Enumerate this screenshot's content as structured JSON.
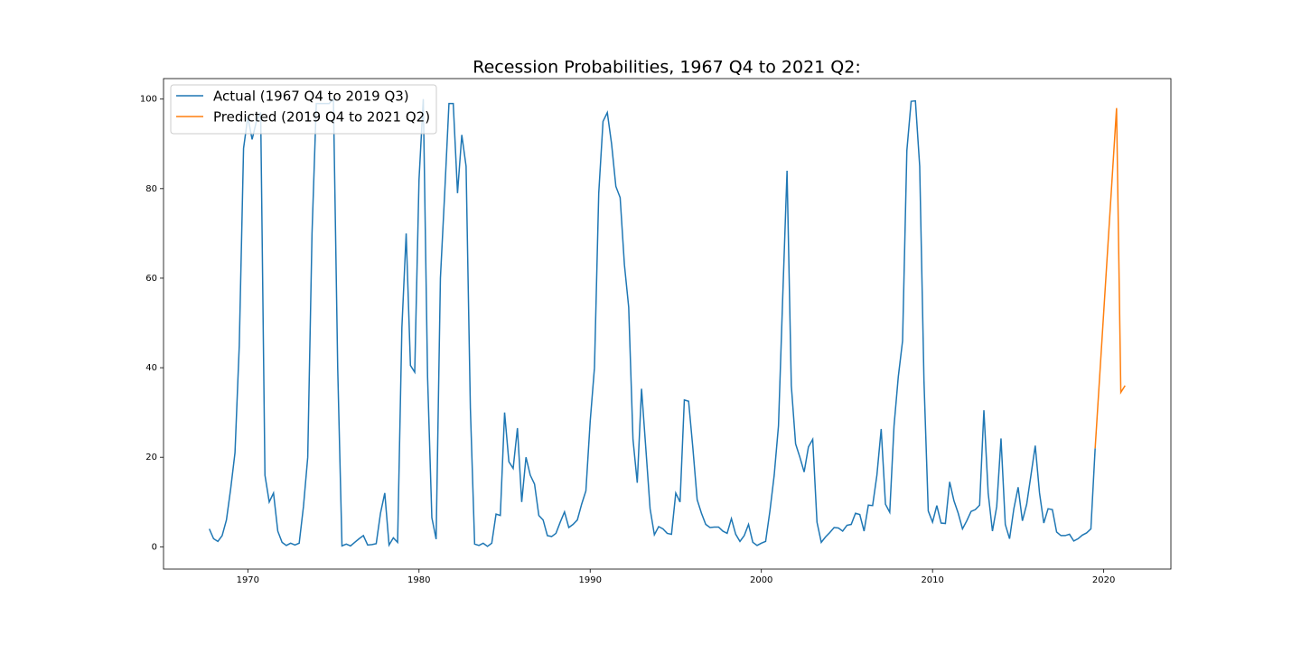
{
  "chart_data": {
    "type": "line",
    "title": "Recession Probabilities, 1967 Q4 to 2021 Q2:",
    "xlim": [
      1965.075,
      2023.925
    ],
    "ylim": [
      -4.98,
      104.58
    ],
    "xticks": [
      1970,
      1980,
      1990,
      2000,
      2010,
      2020
    ],
    "yticks": [
      0,
      20,
      40,
      60,
      80,
      100
    ],
    "grid": false,
    "legend": "upper left",
    "series": [
      {
        "name": "Actual (1967 Q4 to 2019 Q3)",
        "color": "#1f77b4",
        "x": [
          1967.75,
          1968,
          1968.25,
          1968.5,
          1968.75,
          1969,
          1969.25,
          1969.5,
          1969.75,
          1970,
          1970.25,
          1970.5,
          1970.75,
          1971,
          1971.25,
          1971.5,
          1971.75,
          1972,
          1972.25,
          1972.5,
          1972.75,
          1973,
          1973.25,
          1973.5,
          1973.75,
          1974,
          1974.25,
          1974.5,
          1974.75,
          1975,
          1975.25,
          1975.5,
          1975.75,
          1976,
          1976.25,
          1976.5,
          1976.75,
          1977,
          1977.25,
          1977.5,
          1977.75,
          1978,
          1978.25,
          1978.5,
          1978.75,
          1979,
          1979.25,
          1979.5,
          1979.75,
          1980,
          1980.25,
          1980.5,
          1980.75,
          1981,
          1981.25,
          1981.5,
          1981.75,
          1982,
          1982.25,
          1982.5,
          1982.75,
          1983,
          1983.25,
          1983.5,
          1983.75,
          1984,
          1984.25,
          1984.5,
          1984.75,
          1985,
          1985.25,
          1985.5,
          1985.75,
          1986,
          1986.25,
          1986.5,
          1986.75,
          1987,
          1987.25,
          1987.5,
          1987.75,
          1988,
          1988.25,
          1988.5,
          1988.75,
          1989,
          1989.25,
          1989.5,
          1989.75,
          1990,
          1990.25,
          1990.5,
          1990.75,
          1991,
          1991.25,
          1991.5,
          1991.75,
          1992,
          1992.25,
          1992.5,
          1992.75,
          1993,
          1993.25,
          1993.5,
          1993.75,
          1994,
          1994.25,
          1994.5,
          1994.75,
          1995,
          1995.25,
          1995.5,
          1995.75,
          1996,
          1996.25,
          1996.5,
          1996.75,
          1997,
          1997.25,
          1997.5,
          1997.75,
          1998,
          1998.25,
          1998.5,
          1998.75,
          1999,
          1999.25,
          1999.5,
          1999.75,
          2000,
          2000.25,
          2000.5,
          2000.75,
          2001,
          2001.25,
          2001.5,
          2001.75,
          2002,
          2002.25,
          2002.5,
          2002.75,
          2003,
          2003.25,
          2003.5,
          2003.75,
          2004,
          2004.25,
          2004.5,
          2004.75,
          2005,
          2005.25,
          2005.5,
          2005.75,
          2006,
          2006.25,
          2006.5,
          2006.75,
          2007,
          2007.25,
          2007.5,
          2007.75,
          2008,
          2008.25,
          2008.5,
          2008.75,
          2009,
          2009.25,
          2009.5,
          2009.75,
          2010,
          2010.25,
          2010.5,
          2010.75,
          2011,
          2011.25,
          2011.5,
          2011.75,
          2012,
          2012.25,
          2012.5,
          2012.75,
          2013,
          2013.25,
          2013.5,
          2013.75,
          2014,
          2014.25,
          2014.5,
          2014.75,
          2015,
          2015.25,
          2015.5,
          2015.75,
          2016,
          2016.25,
          2016.5,
          2016.75,
          2017,
          2017.25,
          2017.5,
          2017.75,
          2018,
          2018.25,
          2018.5,
          2018.75,
          2019,
          2019.25,
          2019.5
        ],
        "values": [
          4,
          1.8,
          1.2,
          2.5,
          6,
          13,
          21,
          45,
          89,
          96,
          91,
          95,
          97,
          16,
          10,
          12,
          3.5,
          1,
          0.3,
          0.8,
          0.4,
          0.8,
          9,
          20,
          70,
          99,
          99,
          99,
          99,
          100,
          40,
          0.2,
          0.6,
          0.2,
          1,
          1.8,
          2.5,
          0.4,
          0.5,
          0.7,
          7.5,
          12,
          0.4,
          2,
          1,
          49,
          70,
          40.5,
          39,
          82,
          100,
          38,
          6.5,
          1.7,
          60,
          79,
          99,
          99,
          79,
          92,
          85,
          31,
          0.6,
          0.3,
          0.8,
          0.1,
          0.8,
          7.3,
          7,
          30,
          19,
          17.5,
          26.5,
          10,
          20,
          16,
          14,
          7,
          6,
          2.5,
          2.3,
          3,
          5.5,
          7.8,
          4.3,
          5,
          6,
          9.5,
          12.5,
          28,
          40,
          79,
          95,
          97,
          90,
          80.5,
          78,
          63,
          53.5,
          24,
          14.3,
          35.3,
          22,
          8.5,
          2.7,
          4.5,
          4,
          3,
          2.8,
          12,
          10,
          32.8,
          32.5,
          22,
          10.5,
          7.5,
          5,
          4.3,
          4.4,
          4.4,
          3.5,
          3,
          6.3,
          2.8,
          1.2,
          2.5,
          5,
          1,
          0.3,
          0.8,
          1.2,
          8,
          16,
          27,
          56,
          84,
          36,
          23,
          20,
          16.7,
          22.3,
          24,
          5.5,
          1,
          2.2,
          3.2,
          4.3,
          4.2,
          3.5,
          4.8,
          5,
          7.5,
          7.2,
          3.5,
          9.3,
          9.2,
          16,
          26.3,
          9.5,
          7.7,
          27,
          38,
          46,
          88.5,
          99.5,
          99.6,
          85,
          37,
          8,
          5.5,
          9.2,
          5.3,
          5.2,
          14.5,
          10.3,
          7.5,
          4,
          5.8,
          7.9,
          8.3,
          9.3,
          30.5,
          12,
          3.5,
          9,
          24.2,
          5,
          1.8,
          8.5,
          13.3,
          5.8,
          9.5,
          16,
          22.6,
          12,
          5.3,
          8.5,
          8.3,
          3.3,
          2.5,
          2.5,
          2.8,
          1.3,
          1.8,
          2.6,
          3.1,
          4,
          22
        ]
      },
      {
        "name": "Predicted (2019 Q4 to 2021 Q2)",
        "color": "#ff7f0e",
        "x": [
          2019.5,
          2020.75,
          2021,
          2021.25
        ],
        "values": [
          22,
          98,
          34.5,
          36
        ]
      }
    ]
  }
}
